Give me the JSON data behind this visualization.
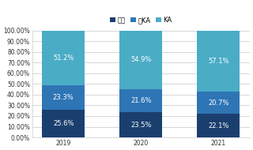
{
  "years": [
    "2019",
    "2020",
    "2021"
  ],
  "categories": [
    "单体",
    "非KA",
    "KA"
  ],
  "values": [
    [
      25.6,
      23.5,
      22.1
    ],
    [
      23.3,
      21.6,
      20.7
    ],
    [
      51.2,
      54.9,
      57.1
    ]
  ],
  "colors": [
    "#1a3f6f",
    "#2e75b6",
    "#4bacc6"
  ],
  "labels": [
    [
      "25.6%",
      "23.5%",
      "22.1%"
    ],
    [
      "23.3%",
      "21.6%",
      "20.7%"
    ],
    [
      "51.2%",
      "54.9%",
      "57.1%"
    ]
  ],
  "legend_labels": [
    "单体",
    "非KA",
    "KA"
  ],
  "ylim": [
    0,
    100
  ],
  "yticks": [
    0,
    10,
    20,
    30,
    40,
    50,
    60,
    70,
    80,
    90,
    100
  ],
  "ytick_labels": [
    "0.00%",
    "10.00%",
    "20.00%",
    "30.00%",
    "40.00%",
    "50.00%",
    "60.00%",
    "70.00%",
    "80.00%",
    "90.00%",
    "100.00%"
  ],
  "plot_bg_color": "#ffffff",
  "fig_bg_color": "#ffffff",
  "grid_color": "#d0d0d0",
  "bar_width": 0.55,
  "label_fontsize": 6.0,
  "tick_fontsize": 5.5,
  "legend_fontsize": 6.0,
  "text_color": "white"
}
